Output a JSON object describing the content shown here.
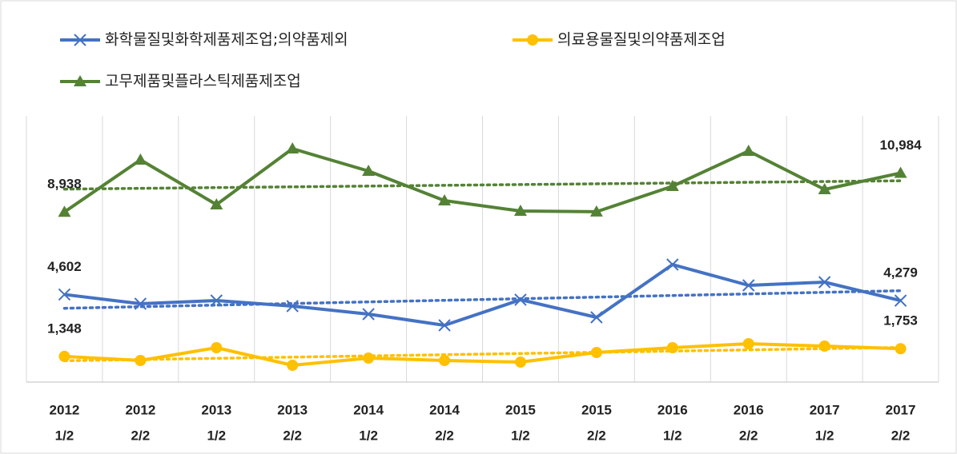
{
  "chart_data": {
    "type": "line",
    "categories": [
      [
        "2012",
        "1/2"
      ],
      [
        "2012",
        "2/2"
      ],
      [
        "2013",
        "1/2"
      ],
      [
        "2013",
        "2/2"
      ],
      [
        "2014",
        "1/2"
      ],
      [
        "2014",
        "2/2"
      ],
      [
        "2015",
        "1/2"
      ],
      [
        "2015",
        "2/2"
      ],
      [
        "2016",
        "1/2"
      ],
      [
        "2016",
        "2/2"
      ],
      [
        "2017",
        "1/2"
      ],
      [
        "2017",
        "2/2"
      ]
    ],
    "series": [
      {
        "name": "화학물질및화학제품제조업;의약품제외",
        "color": "#4472c4",
        "marker": "x",
        "values": [
          4602,
          4116,
          4284,
          3990,
          3570,
          2982,
          4326,
          3402,
          6174,
          5082,
          5250,
          4279
        ],
        "value_labels": [
          "4,602",
          null,
          null,
          null,
          null,
          null,
          null,
          null,
          null,
          null,
          null,
          "4,279"
        ]
      },
      {
        "name": "의료용물질및의약품제조업",
        "color": "#ffc000",
        "marker": "circle",
        "values": [
          1348,
          1134,
          1806,
          882,
          1260,
          1134,
          1050,
          1554,
          1806,
          2016,
          1890,
          1753
        ],
        "value_labels": [
          "1,348",
          null,
          null,
          null,
          null,
          null,
          null,
          null,
          null,
          null,
          null,
          "1,753"
        ]
      },
      {
        "name": "고무제품및플라스틱제품제조업",
        "color": "#548235",
        "marker": "triangle",
        "values": [
          8938,
          11676,
          9324,
          12264,
          11088,
          9534,
          8988,
          8950,
          10290,
          12138,
          10122,
          10984
        ],
        "value_labels": [
          "8,938",
          null,
          null,
          null,
          null,
          null,
          null,
          null,
          null,
          null,
          null,
          "10,984"
        ]
      }
    ],
    "trendline": true,
    "grid": "vertical"
  }
}
